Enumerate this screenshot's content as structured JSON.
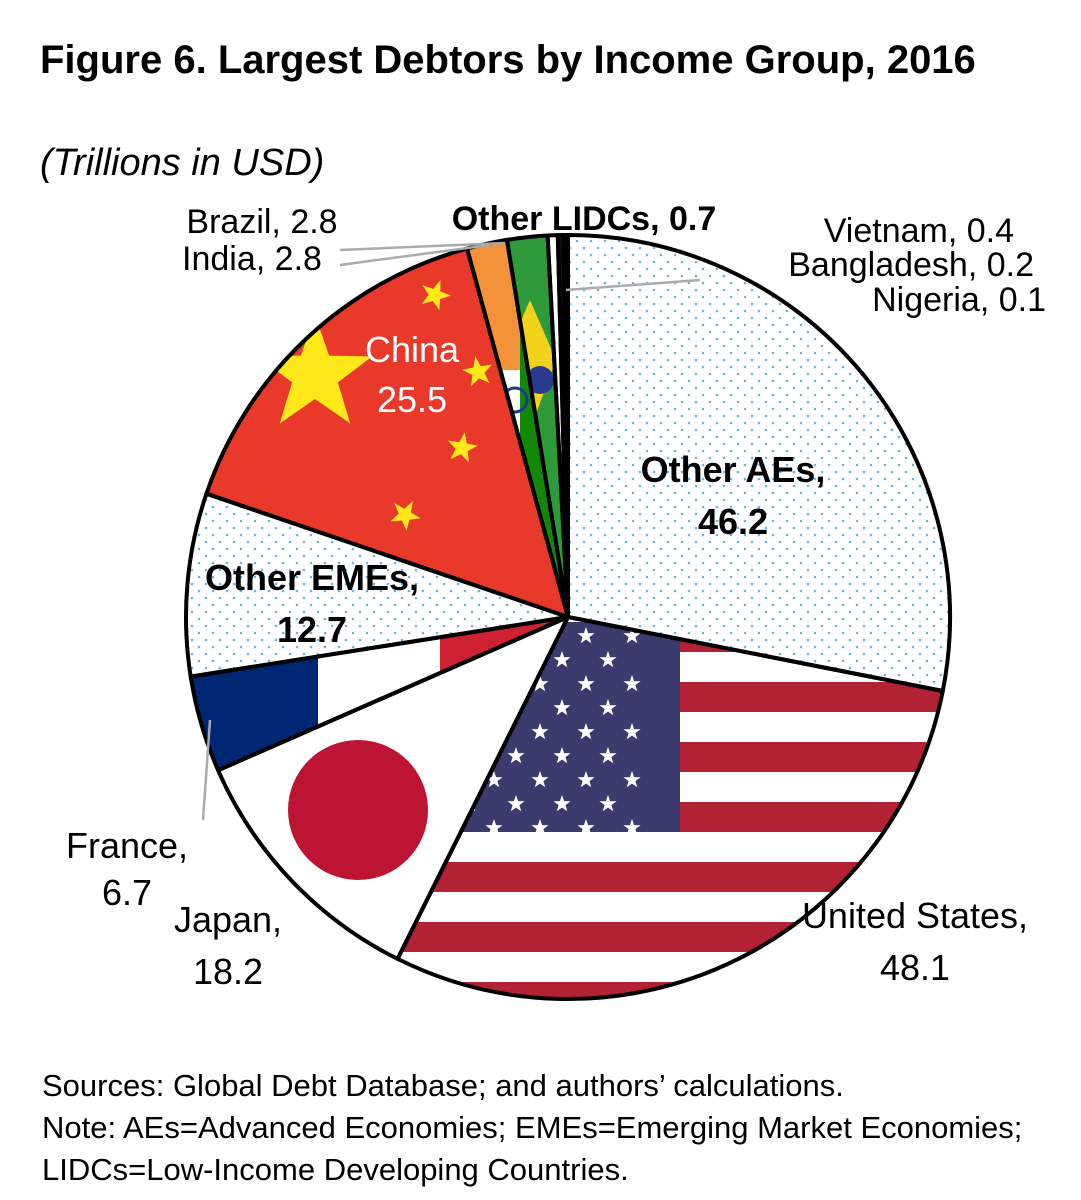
{
  "title": "Figure 6. Largest Debtors by Income Group, 2016",
  "subtitle": "(Trillions in USD)",
  "notes": {
    "sources": "Sources: Global Debt Database; and authors’ calculations.",
    "note": "Note: AEs=Advanced Economies; EMEs=Emerging Market Economies; LIDCs=Low-Income Developing Countries."
  },
  "chart_data": {
    "type": "pie",
    "unit": "Trillions in USD",
    "slices": [
      {
        "id": "other-aes",
        "label": "Other AEs,",
        "value_text": "46.2",
        "value": 46.2,
        "pattern": "dots",
        "bold": true
      },
      {
        "id": "united-states",
        "label": "United States,",
        "value_text": "48.1",
        "value": 48.1,
        "pattern": "us-flag"
      },
      {
        "id": "japan",
        "label": "Japan,",
        "value_text": "18.2",
        "value": 18.2,
        "pattern": "japan-flag"
      },
      {
        "id": "france",
        "label": "France,",
        "value_text": "6.7",
        "value": 6.7,
        "pattern": "france-flag"
      },
      {
        "id": "other-emes",
        "label": "Other EMEs,",
        "value_text": "12.7",
        "value": 12.7,
        "pattern": "dots",
        "bold": true
      },
      {
        "id": "china",
        "label": "China",
        "value_text": "25.5",
        "value": 25.5,
        "pattern": "china-flag"
      },
      {
        "id": "india",
        "label": "India, 2.8",
        "value": 2.8,
        "pattern": "india-flag"
      },
      {
        "id": "brazil",
        "label": "Brazil, 2.8",
        "value": 2.8,
        "pattern": "brazil-flag"
      },
      {
        "id": "other-lidcs",
        "label": "Other LIDCs, 0.7",
        "value": 0.7,
        "pattern": "white",
        "bold": true
      },
      {
        "id": "vietnam",
        "label": "Vietnam, 0.4",
        "value": 0.4,
        "pattern": "black"
      },
      {
        "id": "bangladesh",
        "label": "Bangladesh, 0.2",
        "value": 0.2,
        "pattern": "black"
      },
      {
        "id": "nigeria",
        "label": "Nigeria, 0.1",
        "value": 0.1,
        "pattern": "black"
      }
    ],
    "colors": {
      "china_red": "#e8392b",
      "china_yellow": "#ffe81a",
      "us_red": "#b22234",
      "us_blue": "#3c3b6e",
      "japan_red": "#bc1432",
      "france_blue": "#002674",
      "france_red": "#ce2232",
      "india_saffron": "#f4923a",
      "india_green": "#138808",
      "brazil_green": "#2e9b3a",
      "brazil_yellow": "#f2d21b",
      "dots": "#6fb3d8",
      "leader": "#aaaaaa"
    }
  }
}
